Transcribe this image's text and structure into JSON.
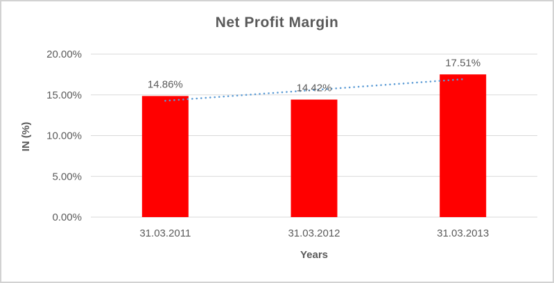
{
  "window": {
    "background_color": "#ffffff",
    "border_color": "#d2d2d2"
  },
  "chart_data": {
    "type": "bar",
    "title": "Net Profit Margin",
    "xlabel": "Years",
    "ylabel": "IN (%)",
    "categories": [
      "31.03.2011",
      "31.03.2012",
      "31.03.2013"
    ],
    "values": [
      14.86,
      14.42,
      17.51
    ],
    "data_labels": [
      "14.86%",
      "14.42%",
      "17.51%"
    ],
    "ylim": [
      0,
      20
    ],
    "yticks": [
      0,
      5,
      10,
      15,
      20
    ],
    "ytick_labels": [
      "0.00%",
      "5.00%",
      "10.00%",
      "15.00%",
      "20.00%"
    ],
    "grid": true,
    "legend": "none",
    "bar_color": "#ff0000",
    "gridline_color": "#d9d9d9",
    "text_color": "#595959",
    "trendline": {
      "kind": "linear",
      "style": "dotted",
      "color": "#5b9bd5"
    }
  }
}
